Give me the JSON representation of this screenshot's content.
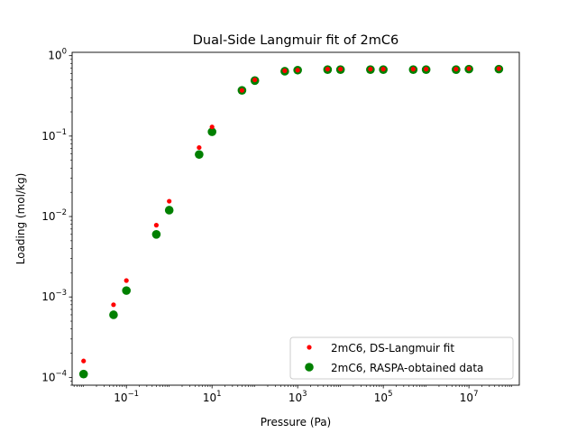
{
  "chart_data": {
    "type": "scatter",
    "title": "Dual-Side Langmuir fit of 2mC6",
    "xlabel": "Pressure (Pa)",
    "ylabel": "Loading (mol/kg)",
    "xscale": "log",
    "yscale": "log",
    "xlim": [
      0.0054,
      150000000.0
    ],
    "ylim": [
      8e-05,
      1.1
    ],
    "x_ticks": [
      {
        "value": 0.1,
        "base": "10",
        "exp": "−1"
      },
      {
        "value": 10,
        "base": "10",
        "exp": "1"
      },
      {
        "value": 1000,
        "base": "10",
        "exp": "3"
      },
      {
        "value": 100000,
        "base": "10",
        "exp": "5"
      },
      {
        "value": 10000000,
        "base": "10",
        "exp": "7"
      }
    ],
    "y_ticks": [
      {
        "value": 0.0001,
        "base": "10",
        "exp": "−4"
      },
      {
        "value": 0.001,
        "base": "10",
        "exp": "−3"
      },
      {
        "value": 0.01,
        "base": "10",
        "exp": "−2"
      },
      {
        "value": 0.1,
        "base": "10",
        "exp": "−1"
      },
      {
        "value": 1,
        "base": "10",
        "exp": "0"
      }
    ],
    "grid": false,
    "legend_position": "lower-right",
    "series": [
      {
        "name": "2mC6, DS-Langmuir fit",
        "color": "#ff0000",
        "marker": "small-dot",
        "points": [
          [
            0.01,
            0.00016
          ],
          [
            0.05,
            0.0008
          ],
          [
            0.1,
            0.0016
          ],
          [
            0.5,
            0.0078
          ],
          [
            1,
            0.0155
          ],
          [
            5,
            0.072
          ],
          [
            10,
            0.13
          ],
          [
            50,
            0.37
          ],
          [
            100,
            0.5
          ],
          [
            500,
            0.65
          ],
          [
            1000,
            0.66
          ],
          [
            5000,
            0.68
          ],
          [
            10000,
            0.68
          ],
          [
            50000,
            0.68
          ],
          [
            100000,
            0.68
          ],
          [
            500000,
            0.68
          ],
          [
            1000000,
            0.68
          ],
          [
            5000000,
            0.68
          ],
          [
            10000000,
            0.69
          ],
          [
            50000000,
            0.69
          ]
        ]
      },
      {
        "name": "2mC6, RASPA-obtained data",
        "color": "#008000",
        "marker": "large-dot",
        "points": [
          [
            0.01,
            0.00011
          ],
          [
            0.05,
            0.0006
          ],
          [
            0.1,
            0.0012
          ],
          [
            0.5,
            0.006
          ],
          [
            1,
            0.012
          ],
          [
            5,
            0.059
          ],
          [
            10,
            0.113
          ],
          [
            50,
            0.37
          ],
          [
            100,
            0.49
          ],
          [
            500,
            0.64
          ],
          [
            1000,
            0.66
          ],
          [
            5000,
            0.67
          ],
          [
            10000,
            0.67
          ],
          [
            50000,
            0.67
          ],
          [
            100000,
            0.67
          ],
          [
            500000,
            0.67
          ],
          [
            1000000,
            0.67
          ],
          [
            5000000,
            0.67
          ],
          [
            10000000,
            0.68
          ],
          [
            50000000,
            0.68
          ]
        ]
      }
    ]
  }
}
